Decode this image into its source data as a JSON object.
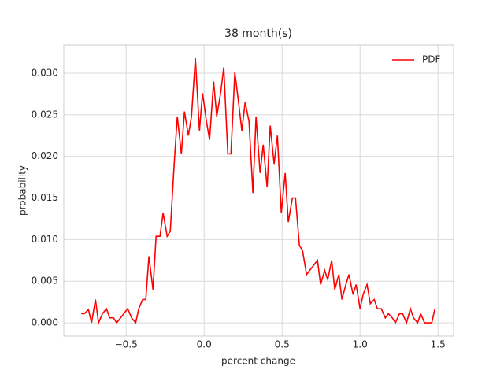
{
  "chart_data": {
    "type": "line",
    "title": "38 month(s)",
    "x_label": "percent change",
    "y_label": "probability",
    "x": [
      -0.788,
      -0.768,
      -0.742,
      -0.722,
      -0.697,
      -0.677,
      -0.652,
      -0.626,
      -0.606,
      -0.581,
      -0.561,
      -0.49,
      -0.465,
      -0.439,
      -0.419,
      -0.394,
      -0.374,
      -0.354,
      -0.328,
      -0.308,
      -0.283,
      -0.263,
      -0.237,
      -0.217,
      -0.192,
      -0.172,
      -0.146,
      -0.126,
      -0.101,
      -0.081,
      -0.056,
      -0.03,
      -0.01,
      0.015,
      0.035,
      0.061,
      0.081,
      0.106,
      0.126,
      0.152,
      0.172,
      0.197,
      0.217,
      0.242,
      0.263,
      0.288,
      0.313,
      0.333,
      0.359,
      0.379,
      0.404,
      0.424,
      0.449,
      0.47,
      0.495,
      0.52,
      0.54,
      0.566,
      0.586,
      0.611,
      0.631,
      0.657,
      0.677,
      0.702,
      0.727,
      0.747,
      0.773,
      0.793,
      0.818,
      0.838,
      0.864,
      0.884,
      0.909,
      0.929,
      0.955,
      0.975,
      1.0,
      1.02,
      1.045,
      1.066,
      1.091,
      1.111,
      1.136,
      1.162,
      1.182,
      1.207,
      1.227,
      1.253,
      1.273,
      1.298,
      1.323,
      1.343,
      1.369,
      1.389,
      1.414,
      1.434,
      1.46,
      1.48
    ],
    "series": [
      {
        "name": "PDF",
        "color": "#ff0000",
        "values": [
          0.0011,
          0.0011,
          0.0016,
          0,
          0.0028,
          0,
          0.0011,
          0.0017,
          0.0006,
          0.0006,
          0,
          0.0017,
          0.0006,
          0,
          0.0017,
          0.0028,
          0.0028,
          0.008,
          0.004,
          0.0104,
          0.0104,
          0.0132,
          0.0104,
          0.011,
          0.0191,
          0.0248,
          0.0203,
          0.0254,
          0.0225,
          0.0248,
          0.0318,
          0.0231,
          0.0276,
          0.0242,
          0.022,
          0.029,
          0.0248,
          0.0276,
          0.0307,
          0.0203,
          0.0203,
          0.0301,
          0.0271,
          0.0231,
          0.0265,
          0.0242,
          0.0156,
          0.0248,
          0.018,
          0.0214,
          0.0163,
          0.0237,
          0.0191,
          0.0225,
          0.0132,
          0.018,
          0.0121,
          0.015,
          0.015,
          0.0093,
          0.0087,
          0.0058,
          0.0063,
          0.0069,
          0.0075,
          0.0046,
          0.0063,
          0.0052,
          0.0075,
          0.004,
          0.0058,
          0.0028,
          0.0046,
          0.0058,
          0.0034,
          0.0046,
          0.0017,
          0.0034,
          0.0046,
          0.0023,
          0.0028,
          0.0017,
          0.0017,
          0.0006,
          0.0011,
          0.0006,
          0,
          0.0011,
          0.0011,
          0,
          0.0017,
          0.0006,
          0,
          0.0011,
          0,
          0,
          0,
          0.0017
        ]
      }
    ],
    "xlim": [
      -0.9,
      1.6
    ],
    "ylim": [
      -0.0016,
      0.0334
    ],
    "xticks": [
      {
        "value": -0.5,
        "label": "−0.5"
      },
      {
        "value": 0,
        "label": "0.0"
      },
      {
        "value": 0.5,
        "label": "0.5"
      },
      {
        "value": 1,
        "label": "1.0"
      },
      {
        "value": 1.5,
        "label": "1.5"
      }
    ],
    "yticks": [
      {
        "value": 0,
        "label": "0.000"
      },
      {
        "value": 0.005,
        "label": "0.005"
      },
      {
        "value": 0.01,
        "label": "0.010"
      },
      {
        "value": 0.015,
        "label": "0.015"
      },
      {
        "value": 0.02,
        "label": "0.020"
      },
      {
        "value": 0.025,
        "label": "0.025"
      },
      {
        "value": 0.03,
        "label": "0.030"
      }
    ],
    "grid": true,
    "legend_position": "upper-right"
  }
}
